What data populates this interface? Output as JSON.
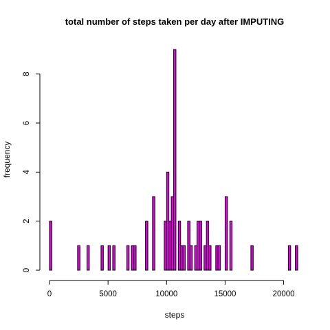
{
  "chart_data": {
    "type": "bar",
    "title": "total number of steps taken per day after IMPUTING",
    "xlabel": "steps",
    "ylabel": "frequency",
    "xlim": [
      0,
      21500
    ],
    "ylim": [
      0,
      9
    ],
    "bin_width": 200,
    "x_ticks": [
      0,
      5000,
      10000,
      15000,
      20000
    ],
    "y_ticks": [
      0,
      2,
      4,
      6,
      8
    ],
    "bar_color": "#e600e6",
    "bars": [
      {
        "x": 0,
        "count": 2
      },
      {
        "x": 2400,
        "count": 1
      },
      {
        "x": 3200,
        "count": 1
      },
      {
        "x": 4400,
        "count": 1
      },
      {
        "x": 5000,
        "count": 1
      },
      {
        "x": 5400,
        "count": 1
      },
      {
        "x": 6600,
        "count": 1
      },
      {
        "x": 7000,
        "count": 1
      },
      {
        "x": 7200,
        "count": 1
      },
      {
        "x": 8200,
        "count": 2
      },
      {
        "x": 8800,
        "count": 3
      },
      {
        "x": 9800,
        "count": 2
      },
      {
        "x": 10000,
        "count": 4
      },
      {
        "x": 10200,
        "count": 2
      },
      {
        "x": 10400,
        "count": 3
      },
      {
        "x": 10600,
        "count": 9
      },
      {
        "x": 11000,
        "count": 2
      },
      {
        "x": 11200,
        "count": 1
      },
      {
        "x": 11400,
        "count": 1
      },
      {
        "x": 11800,
        "count": 2
      },
      {
        "x": 12000,
        "count": 1
      },
      {
        "x": 12400,
        "count": 1
      },
      {
        "x": 12600,
        "count": 2
      },
      {
        "x": 12800,
        "count": 2
      },
      {
        "x": 13200,
        "count": 1
      },
      {
        "x": 13400,
        "count": 2
      },
      {
        "x": 13600,
        "count": 1
      },
      {
        "x": 14200,
        "count": 1
      },
      {
        "x": 14400,
        "count": 1
      },
      {
        "x": 15000,
        "count": 3
      },
      {
        "x": 15400,
        "count": 2
      },
      {
        "x": 17200,
        "count": 1
      },
      {
        "x": 20400,
        "count": 1
      },
      {
        "x": 21000,
        "count": 1
      }
    ]
  }
}
